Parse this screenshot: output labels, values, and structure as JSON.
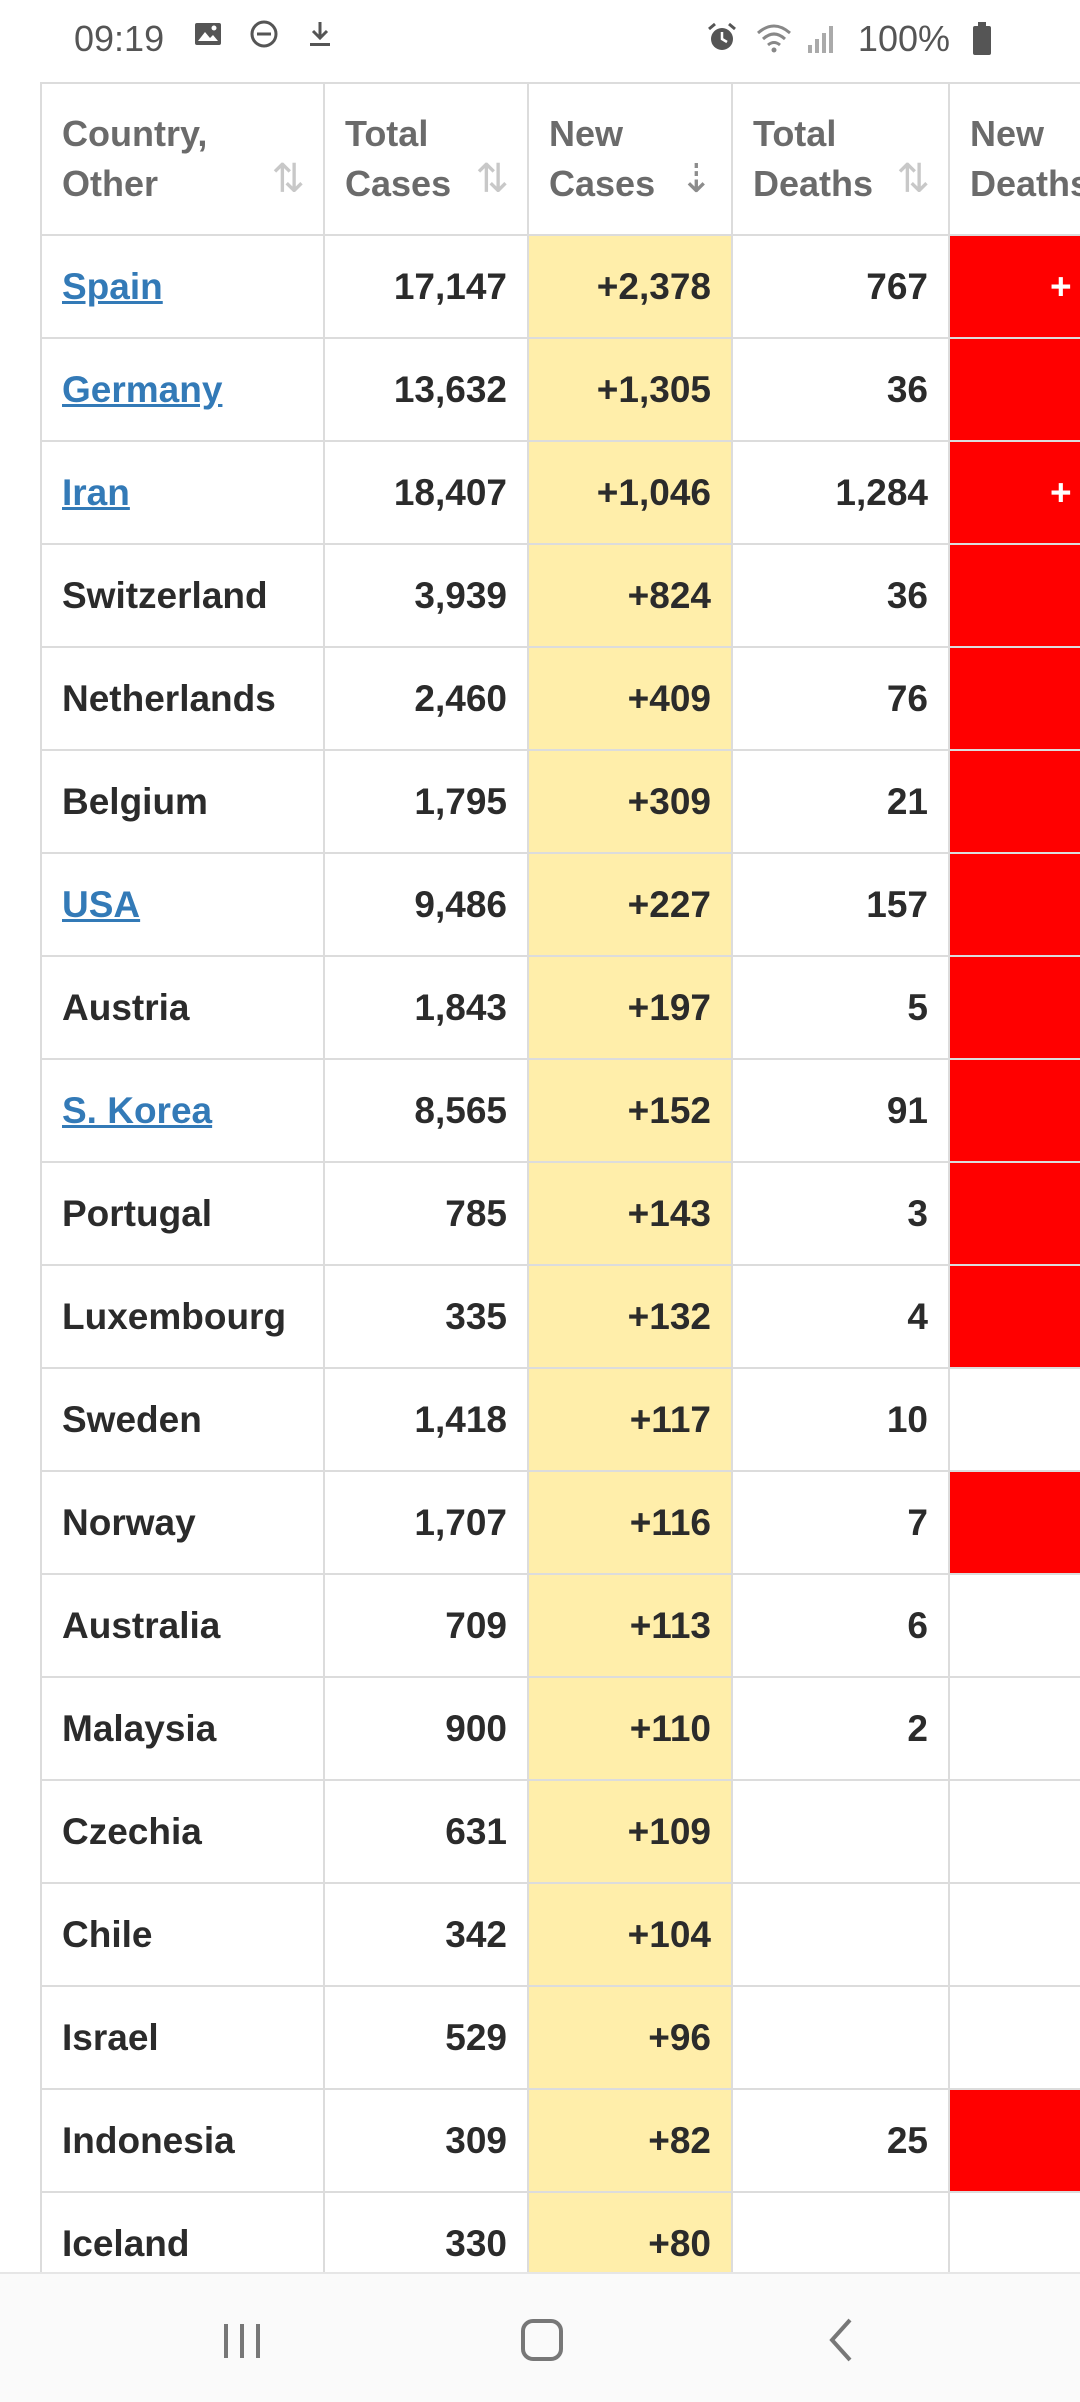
{
  "status": {
    "time": "09:19",
    "battery": "100%",
    "left_icons": [
      "image-icon",
      "dnd-icon",
      "download-icon"
    ],
    "right_icons": [
      "alarm-icon",
      "wifi-icon",
      "signal-icon",
      "battery-icon"
    ]
  },
  "table": {
    "headers": [
      {
        "line1": "Country,",
        "line2": "Other",
        "sort": "unsorted"
      },
      {
        "line1": "Total",
        "line2": "Cases",
        "sort": "unsorted"
      },
      {
        "line1": "New",
        "line2": "Cases",
        "sort": "descending"
      },
      {
        "line1": "Total",
        "line2": "Deaths",
        "sort": "unsorted"
      },
      {
        "line1": "New",
        "line2": "Deaths",
        "sort": "unsorted"
      }
    ],
    "rows": [
      {
        "country": "Spain",
        "link": true,
        "total_cases": "17,147",
        "new_cases": "+2,378",
        "total_deaths": "767",
        "new_deaths": "+",
        "new_deaths_red": true
      },
      {
        "country": "Germany",
        "link": true,
        "total_cases": "13,632",
        "new_cases": "+1,305",
        "total_deaths": "36",
        "new_deaths": "",
        "new_deaths_red": true
      },
      {
        "country": "Iran",
        "link": true,
        "total_cases": "18,407",
        "new_cases": "+1,046",
        "total_deaths": "1,284",
        "new_deaths": "+",
        "new_deaths_red": true
      },
      {
        "country": "Switzerland",
        "link": false,
        "total_cases": "3,939",
        "new_cases": "+824",
        "total_deaths": "36",
        "new_deaths": "",
        "new_deaths_red": true
      },
      {
        "country": "Netherlands",
        "link": false,
        "total_cases": "2,460",
        "new_cases": "+409",
        "total_deaths": "76",
        "new_deaths": "",
        "new_deaths_red": true
      },
      {
        "country": "Belgium",
        "link": false,
        "total_cases": "1,795",
        "new_cases": "+309",
        "total_deaths": "21",
        "new_deaths": "",
        "new_deaths_red": true
      },
      {
        "country": "USA",
        "link": true,
        "total_cases": "9,486",
        "new_cases": "+227",
        "total_deaths": "157",
        "new_deaths": "",
        "new_deaths_red": true
      },
      {
        "country": "Austria",
        "link": false,
        "total_cases": "1,843",
        "new_cases": "+197",
        "total_deaths": "5",
        "new_deaths": "",
        "new_deaths_red": true
      },
      {
        "country": "S. Korea",
        "link": true,
        "total_cases": "8,565",
        "new_cases": "+152",
        "total_deaths": "91",
        "new_deaths": "",
        "new_deaths_red": true
      },
      {
        "country": "Portugal",
        "link": false,
        "total_cases": "785",
        "new_cases": "+143",
        "total_deaths": "3",
        "new_deaths": "",
        "new_deaths_red": true
      },
      {
        "country": "Luxembourg",
        "link": false,
        "total_cases": "335",
        "new_cases": "+132",
        "total_deaths": "4",
        "new_deaths": "",
        "new_deaths_red": true
      },
      {
        "country": "Sweden",
        "link": false,
        "total_cases": "1,418",
        "new_cases": "+117",
        "total_deaths": "10",
        "new_deaths": "",
        "new_deaths_red": false
      },
      {
        "country": "Norway",
        "link": false,
        "total_cases": "1,707",
        "new_cases": "+116",
        "total_deaths": "7",
        "new_deaths": "",
        "new_deaths_red": true
      },
      {
        "country": "Australia",
        "link": false,
        "total_cases": "709",
        "new_cases": "+113",
        "total_deaths": "6",
        "new_deaths": "",
        "new_deaths_red": false
      },
      {
        "country": "Malaysia",
        "link": false,
        "total_cases": "900",
        "new_cases": "+110",
        "total_deaths": "2",
        "new_deaths": "",
        "new_deaths_red": false
      },
      {
        "country": "Czechia",
        "link": false,
        "total_cases": "631",
        "new_cases": "+109",
        "total_deaths": "",
        "new_deaths": "",
        "new_deaths_red": false
      },
      {
        "country": "Chile",
        "link": false,
        "total_cases": "342",
        "new_cases": "+104",
        "total_deaths": "",
        "new_deaths": "",
        "new_deaths_red": false
      },
      {
        "country": "Israel",
        "link": false,
        "total_cases": "529",
        "new_cases": "+96",
        "total_deaths": "",
        "new_deaths": "",
        "new_deaths_red": false
      },
      {
        "country": "Indonesia",
        "link": false,
        "total_cases": "309",
        "new_cases": "+82",
        "total_deaths": "25",
        "new_deaths": "",
        "new_deaths_red": true
      },
      {
        "country": "Iceland",
        "link": false,
        "total_cases": "330",
        "new_cases": "+80",
        "total_deaths": "",
        "new_deaths": "",
        "new_deaths_red": false
      }
    ]
  },
  "nav": {
    "buttons": [
      "recent-apps",
      "home",
      "back"
    ]
  },
  "colors": {
    "link": "#337ab7",
    "new_cases_bg": "#ffeeaa",
    "new_deaths_bg": "#ff0000",
    "border": "#dcdcdc"
  }
}
